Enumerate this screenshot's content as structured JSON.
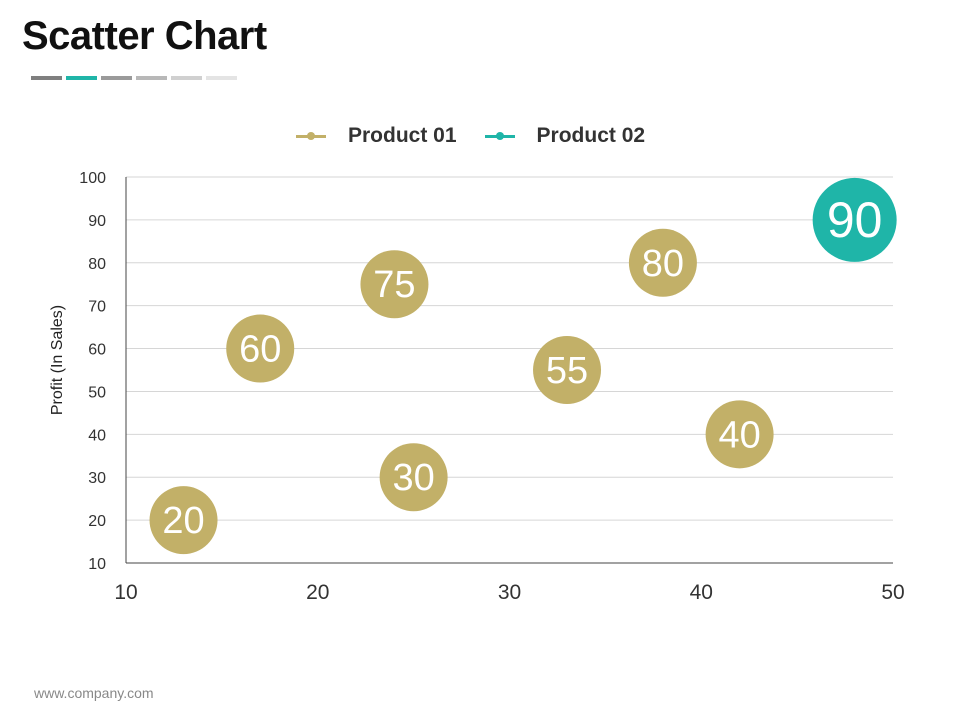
{
  "page": {
    "title": "Scatter Chart",
    "footer": "www.company.com",
    "title_bar_colors": [
      "#7f7f7f",
      "#1fb5a8",
      "#9a9a9a",
      "#b8b8b8",
      "#d0d0d0",
      "#e4e4e4"
    ]
  },
  "chart_data": {
    "type": "scatter",
    "title": "",
    "xlabel": "",
    "ylabel": "Profit  (In Sales)",
    "xlim": [
      10,
      50
    ],
    "ylim": [
      10,
      100
    ],
    "x_ticks": [
      "10",
      "20",
      "30",
      "40",
      "50"
    ],
    "y_ticks": [
      "10",
      "20",
      "30",
      "40",
      "50",
      "60",
      "70",
      "80",
      "90",
      "100"
    ],
    "grid": "horizontal",
    "legend": "top-center",
    "series": [
      {
        "name": "Product 01",
        "color": "#c2b068",
        "points": [
          {
            "x": 13,
            "y": 20,
            "label": "20"
          },
          {
            "x": 17,
            "y": 60,
            "label": "60"
          },
          {
            "x": 24,
            "y": 75,
            "label": "75"
          },
          {
            "x": 25,
            "y": 30,
            "label": "30"
          },
          {
            "x": 33,
            "y": 55,
            "label": "55"
          },
          {
            "x": 38,
            "y": 80,
            "label": "80"
          },
          {
            "x": 42,
            "y": 40,
            "label": "40"
          }
        ]
      },
      {
        "name": "Product 02",
        "color": "#1fb5a8",
        "points": [
          {
            "x": 48,
            "y": 90,
            "label": "90"
          }
        ]
      }
    ]
  }
}
